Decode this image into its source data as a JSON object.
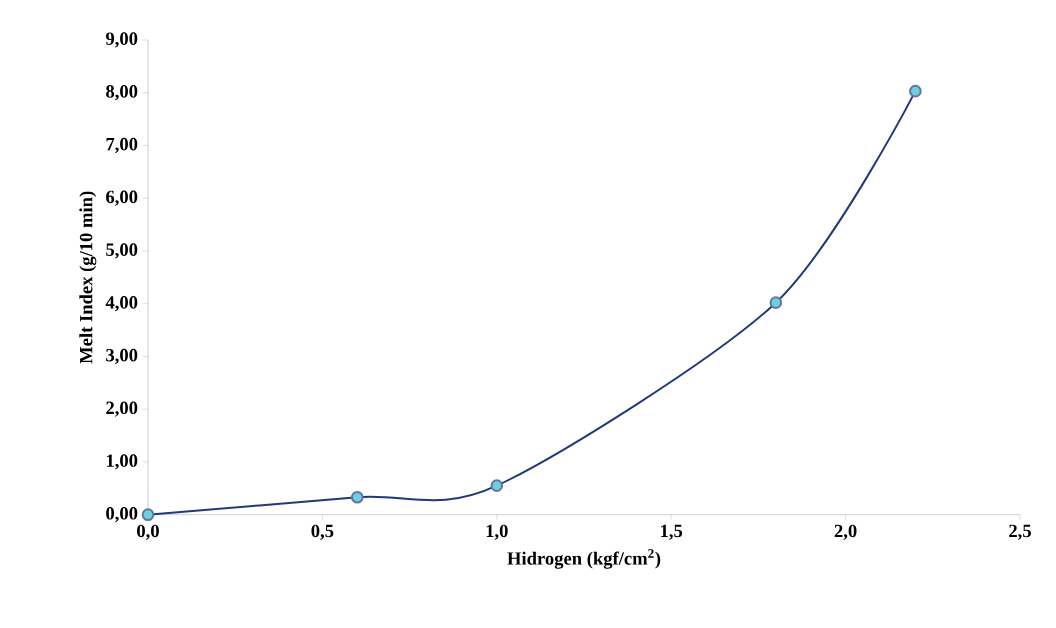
{
  "chart_data": {
    "type": "line",
    "xlabel": "Hidrogen (kgf/cm$^{2}$)",
    "ylabel": "Melt Index (g/10 min)",
    "x": [
      0,
      0.6,
      1.0,
      1.8,
      2.2
    ],
    "series": [
      {
        "color": "#1f3a7a",
        "values": [
          0,
          0.33,
          0.55,
          4.02,
          8.03
        ]
      }
    ],
    "marker": "circle",
    "line_style": "solid",
    "xlim": [
      0,
      2.5
    ],
    "ylim": [
      0,
      9
    ],
    "xticks": [
      {
        "value": 0,
        "label": "0,0"
      },
      {
        "value": 0.5,
        "label": "0,5"
      },
      {
        "value": 1.0,
        "label": "1,0"
      },
      {
        "value": 1.5,
        "label": "1,5"
      },
      {
        "value": 2.0,
        "label": "2,0"
      },
      {
        "value": 2.5,
        "label": "2,5"
      }
    ],
    "yticks": [
      {
        "value": 0,
        "label": "0,00"
      },
      {
        "value": 1,
        "label": "1,00"
      },
      {
        "value": 2,
        "label": "2,00"
      },
      {
        "value": 3,
        "label": "3,00"
      },
      {
        "value": 4,
        "label": "4,00"
      },
      {
        "value": 5,
        "label": "5,00"
      },
      {
        "value": 6,
        "label": "6,00"
      },
      {
        "value": 7,
        "label": "7,00"
      },
      {
        "value": 8,
        "label": "8,00"
      },
      {
        "value": 9,
        "label": "9,00"
      }
    ]
  }
}
